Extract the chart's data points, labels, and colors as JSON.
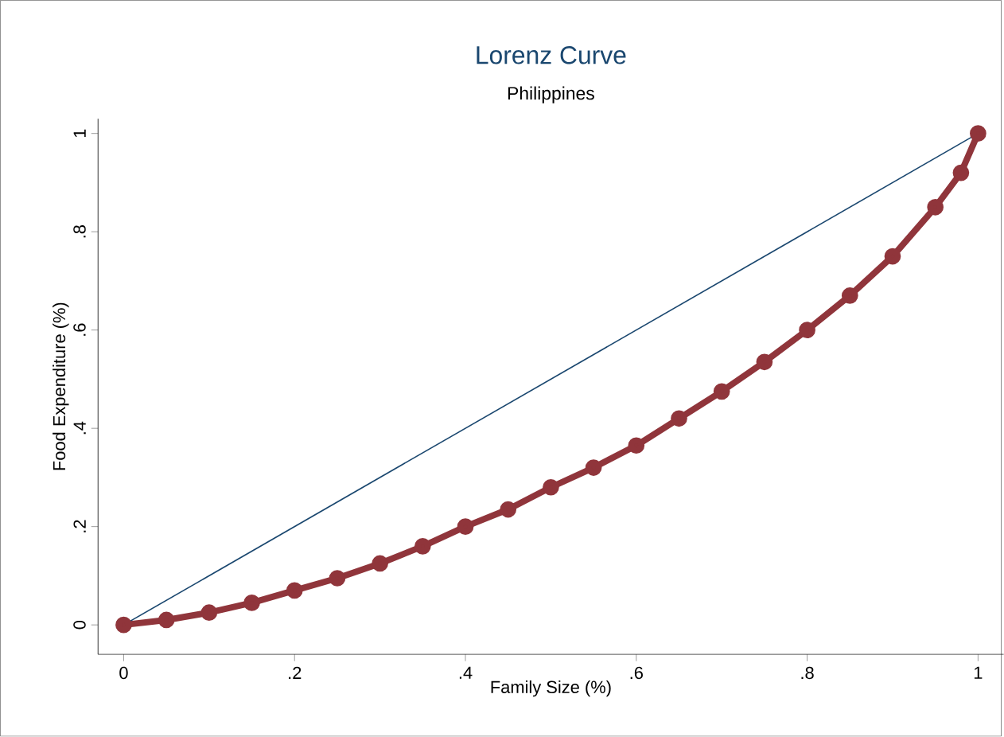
{
  "chart_data": {
    "type": "line",
    "title": "Lorenz Curve",
    "subtitle": "Philippines",
    "xlabel": "Family Size (%)",
    "ylabel": "Food Expenditure (%)",
    "xlim": [
      -0.03,
      1.03
    ],
    "ylim": [
      -0.06,
      1.03
    ],
    "xticks": [
      0,
      {
        "value": 0.2,
        "label": ".2"
      },
      {
        "value": 0.4,
        "label": ".4"
      },
      {
        "value": 0.6,
        "label": ".6"
      },
      {
        "value": 0.8,
        "label": ".8"
      },
      1
    ],
    "yticks": [
      0,
      {
        "value": 0.2,
        "label": ".2"
      },
      {
        "value": 0.4,
        "label": ".4"
      },
      {
        "value": 0.6,
        "label": ".6"
      },
      {
        "value": 0.8,
        "label": ".8"
      },
      1
    ],
    "series": [
      {
        "color": "#1a476f",
        "marker": "none",
        "x": [
          0,
          1
        ],
        "values": [
          0,
          1
        ]
      },
      {
        "color": "#90353b",
        "marker": "circle",
        "x": [
          0,
          0.05,
          0.1,
          0.15,
          0.2,
          0.25,
          0.3,
          0.35,
          0.4,
          0.45,
          0.5,
          0.55,
          0.6,
          0.65,
          0.7,
          0.75,
          0.8,
          0.85,
          0.9,
          0.95,
          0.98,
          1
        ],
        "values": [
          0,
          0.01,
          0.025,
          0.045,
          0.07,
          0.095,
          0.125,
          0.16,
          0.2,
          0.235,
          0.28,
          0.32,
          0.365,
          0.42,
          0.475,
          0.535,
          0.6,
          0.67,
          0.75,
          0.85,
          0.92,
          1
        ]
      }
    ]
  }
}
